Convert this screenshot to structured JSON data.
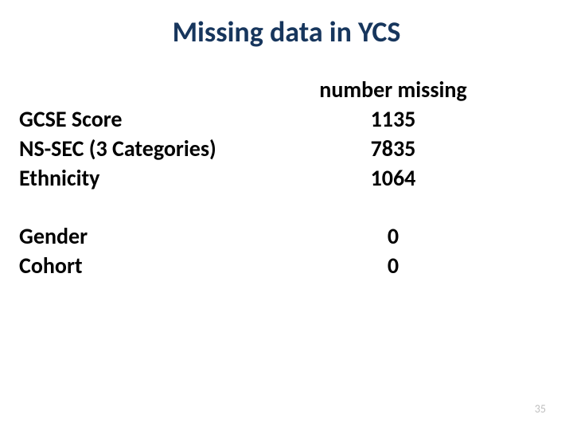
{
  "title": "Missing data in YCS",
  "table": {
    "header": "number missing",
    "group1": [
      {
        "label": "GCSE Score",
        "value": "1135"
      },
      {
        "label": "NS-SEC (3 Categories)",
        "value": "7835"
      },
      {
        "label": "Ethnicity",
        "value": "1064"
      }
    ],
    "group2": [
      {
        "label": "Gender",
        "value": "0"
      },
      {
        "label": "Cohort",
        "value": "0"
      }
    ]
  },
  "pageNumber": "35",
  "colors": {
    "title": "#17365d",
    "text": "#000000",
    "pageNum": "#bfbfbf",
    "background": "#ffffff"
  },
  "typography": {
    "titleSize": 36,
    "bodySize": 28,
    "pageNumSize": 14,
    "fontFamily": "Calibri"
  }
}
